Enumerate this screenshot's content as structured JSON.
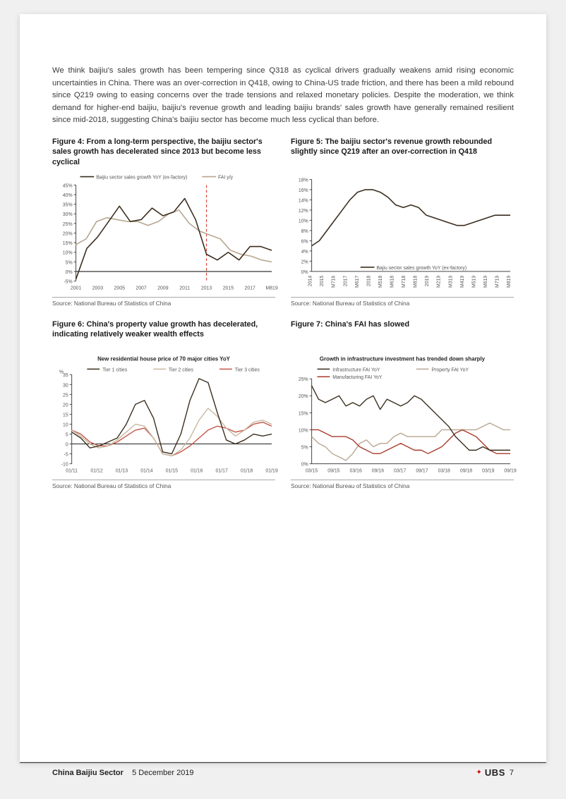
{
  "body_text": "We think baijiu's sales growth has been tempering since Q318 as cyclical drivers gradually weakens amid rising economic uncertainties in China. There was an over-correction in Q418, owing to China-US trade friction, and there has been a mild rebound since Q219 owing to easing concerns over the trade tensions and relaxed monetary policies. Despite the moderation, we think demand for higher-end baijiu, baijiu's revenue growth and leading baijiu brands' sales growth have generally remained resilient since mid-2018, suggesting China's baijiu sector has become much less cyclical than before.",
  "fig4": {
    "title": "Figure 4: From a long-term perspective, the baijiu sector's sales growth has decelerated since 2013 but become less cyclical",
    "source": "Source: National Bureau of Statistics of China",
    "legend": [
      "Baijiu sector sales growth YoY (ex-factory)",
      "FAI y/y"
    ],
    "colors": {
      "baijiu": "#3b2e1e",
      "fai": "#b8a690",
      "divider": "#d9443b",
      "axis": "#444",
      "grid": "#d9d9d9",
      "bg": "#ffffff",
      "text": "#555"
    },
    "ylim": [
      -5,
      45
    ],
    "ytick_step": 5,
    "yticks": [
      "-5%",
      "0%",
      "5%",
      "10%",
      "15%",
      "20%",
      "25%",
      "30%",
      "35%",
      "40%",
      "45%"
    ],
    "xticks": [
      "2001",
      "2003",
      "2005",
      "2007",
      "2009",
      "2011",
      "2013",
      "2015",
      "2017",
      "M819"
    ],
    "divider_x": "2013",
    "series": {
      "baijiu": [
        -4,
        12,
        18,
        26,
        34,
        26,
        27,
        33,
        29,
        31,
        38,
        27,
        9,
        6,
        10,
        6,
        13,
        13,
        11
      ],
      "fai": [
        14,
        17,
        26,
        28,
        27,
        26,
        26,
        24,
        26,
        30,
        32,
        25,
        21,
        19,
        17,
        11,
        9,
        8,
        6,
        5
      ]
    },
    "line_width": 1.6,
    "font_size": 8
  },
  "fig5": {
    "title": "Figure 5: The baijiu sector's revenue growth rebounded slightly since Q219 after an over-correction in Q418",
    "source": "Source: National Bureau of Statistics of China",
    "legend": [
      "Bajiu sector sales growth YoY (ex-factory)"
    ],
    "colors": {
      "line": "#3b2e1e",
      "axis": "#444",
      "bg": "#ffffff",
      "text": "#555"
    },
    "ylim": [
      0,
      18
    ],
    "ytick_step": 2,
    "yticks": [
      "0%",
      "2%",
      "4%",
      "6%",
      "8%",
      "10%",
      "12%",
      "14%",
      "16%",
      "18%"
    ],
    "xticks": [
      "2014",
      "2015",
      "M716",
      "2017",
      "M617",
      "2018",
      "M518",
      "M618",
      "M718",
      "M818",
      "2019",
      "M219",
      "M319",
      "M419",
      "M519",
      "M619",
      "M719",
      "M819"
    ],
    "series": {
      "rev": [
        5,
        6,
        8,
        10,
        12,
        14,
        15.5,
        16,
        16,
        15.5,
        14.5,
        13,
        12.5,
        13,
        12.5,
        11,
        10.5,
        10,
        9.5,
        9,
        9,
        9.5,
        10,
        10.5,
        11,
        11,
        11
      ]
    },
    "line_width": 1.6,
    "font_size": 8
  },
  "fig6": {
    "title": "Figure 6: China's property value growth has decelerated, indicating relatively weaker wealth effects",
    "chart_title": "New residential house price of 70 major cities YoY",
    "source": "Source: National Bureau of Statistics of China",
    "legend": [
      "Tier 1 cities",
      "Tier 2 cities",
      "Tier 3 cities"
    ],
    "colors": {
      "t1": "#3b2e1e",
      "t2": "#c7b89f",
      "t3": "#c4544a",
      "axis": "#444",
      "bg": "#ffffff",
      "text": "#555"
    },
    "ylim": [
      -10,
      35
    ],
    "ytick_step": 5,
    "ylabel": "%",
    "yticks": [
      "-10",
      "-5",
      "0",
      "5",
      "10",
      "15",
      "20",
      "25",
      "30",
      "35"
    ],
    "xticks": [
      "01/11",
      "01/12",
      "01/13",
      "01/14",
      "01/15",
      "01/16",
      "01/17",
      "01/18",
      "01/19"
    ],
    "series": {
      "t1": [
        6,
        3,
        -2,
        -1,
        1,
        3,
        10,
        20,
        22,
        13,
        -4,
        -5,
        5,
        22,
        33,
        31,
        16,
        2,
        0,
        2,
        5,
        4,
        5
      ],
      "t2": [
        7,
        4,
        0,
        -2,
        -1,
        2,
        6,
        10,
        9,
        3,
        -5,
        -6,
        -3,
        3,
        12,
        18,
        14,
        8,
        4,
        7,
        11,
        12,
        10
      ],
      "t3": [
        7,
        5,
        1,
        -1,
        -1,
        1,
        4,
        7,
        8,
        3,
        -5,
        -6,
        -4,
        -1,
        3,
        7,
        9,
        8,
        6,
        7,
        10,
        11,
        9
      ]
    },
    "line_width": 1.4,
    "font_size": 8
  },
  "fig7": {
    "title": "Figure 7: China's FAI has slowed",
    "chart_title": "Growth in infrastructure investment has trended down sharply",
    "source": "Source: National Bureau of Statistics of China",
    "legend": [
      "Infrastructure FAI YoY",
      "Property FAI YoY",
      "Manufacturing FAI YoY"
    ],
    "colors": {
      "infra": "#3b2e1e",
      "prop": "#b8a690",
      "manu": "#a83a2a",
      "axis": "#444",
      "bg": "#ffffff",
      "text": "#555"
    },
    "ylim": [
      0,
      25
    ],
    "ytick_step": 5,
    "yticks": [
      "0%",
      "5%",
      "10%",
      "15%",
      "20%",
      "25%"
    ],
    "xticks": [
      "03/15",
      "09/15",
      "03/16",
      "09/16",
      "03/17",
      "09/17",
      "03/18",
      "09/18",
      "03/19",
      "09/19"
    ],
    "series": {
      "infra": [
        23,
        19,
        18,
        19,
        20,
        17,
        18,
        17,
        19,
        20,
        16,
        19,
        18,
        17,
        18,
        20,
        19,
        17,
        15,
        13,
        11,
        8,
        6,
        4,
        4,
        5,
        4,
        4,
        4,
        4
      ],
      "prop": [
        8,
        6,
        5,
        3,
        2,
        1,
        3,
        6,
        7,
        5,
        6,
        6,
        8,
        9,
        8,
        8,
        8,
        8,
        8,
        10,
        10,
        10,
        10,
        10,
        10,
        11,
        12,
        11,
        10,
        10
      ],
      "manu": [
        10,
        10,
        9,
        8,
        8,
        8,
        7,
        5,
        4,
        3,
        3,
        4,
        5,
        6,
        5,
        4,
        4,
        3,
        4,
        5,
        7,
        9,
        10,
        9,
        8,
        6,
        4,
        3,
        3,
        3
      ]
    },
    "line_width": 1.4,
    "font_size": 8
  },
  "footer": {
    "title": "China Baijiu Sector",
    "date": "5 December 2019",
    "brand": "UBS",
    "page": "7"
  }
}
